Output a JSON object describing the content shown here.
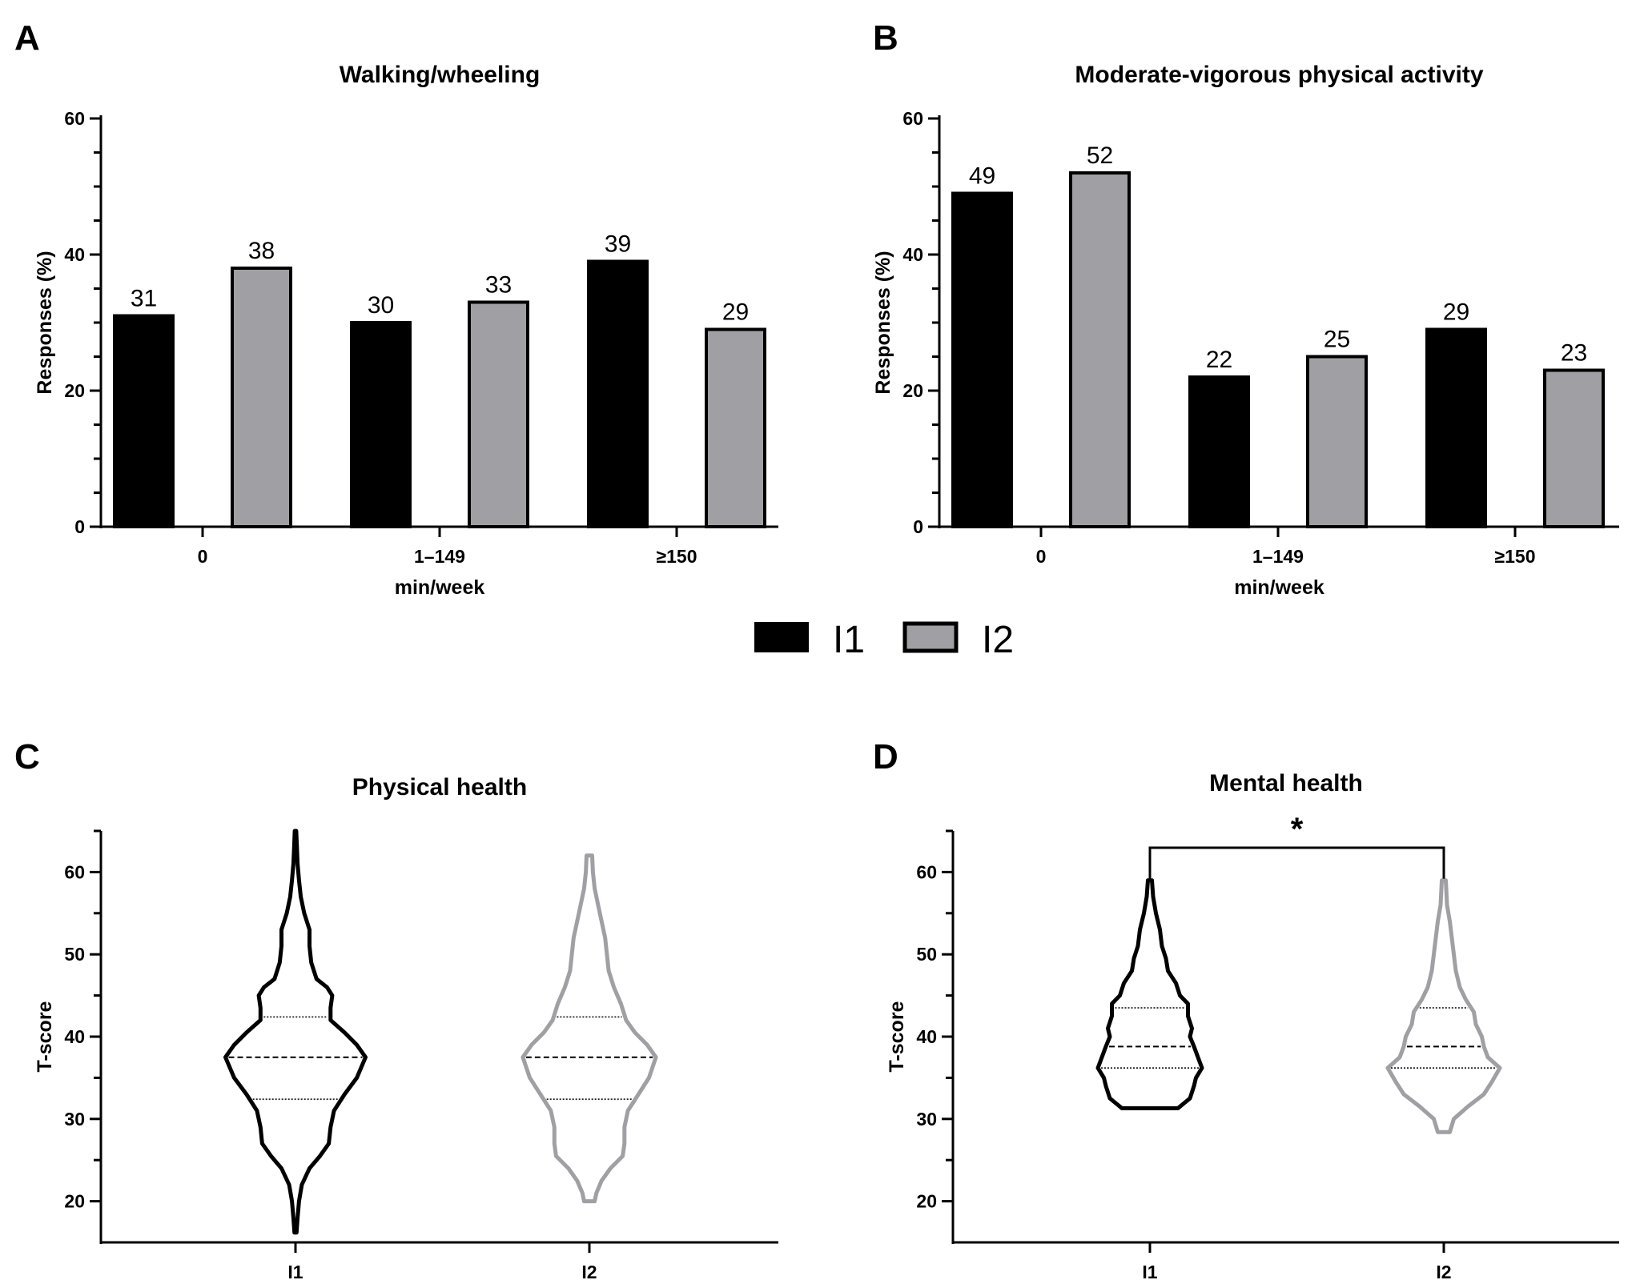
{
  "legend": {
    "entries": [
      {
        "label": "I1",
        "color": "#000000"
      },
      {
        "label": "I2",
        "color": "#a0a0a4"
      }
    ]
  },
  "chart_data": [
    {
      "panel": "A",
      "type": "bar",
      "title": "Walking/wheeling",
      "xlabel": "min/week",
      "ylabel": "Responses (%)",
      "ylim": [
        0,
        60
      ],
      "yticks": [
        0,
        20,
        40,
        60
      ],
      "categories": [
        "0",
        "1–149",
        "≥150"
      ],
      "series": [
        {
          "name": "I1",
          "values": [
            31,
            30,
            39
          ]
        },
        {
          "name": "I2",
          "values": [
            38,
            33,
            29
          ]
        }
      ]
    },
    {
      "panel": "B",
      "type": "bar",
      "title": "Moderate-vigorous physical activity",
      "xlabel": "min/week",
      "ylabel": "Responses (%)",
      "ylim": [
        0,
        60
      ],
      "yticks": [
        0,
        20,
        40,
        60
      ],
      "categories": [
        "0",
        "1–149",
        "≥150"
      ],
      "series": [
        {
          "name": "I1",
          "values": [
            49,
            22,
            29
          ]
        },
        {
          "name": "I2",
          "values": [
            52,
            25,
            23
          ]
        }
      ]
    },
    {
      "panel": "C",
      "type": "violin",
      "title": "Physical health",
      "xlabel": "",
      "ylabel": "T-score",
      "ylim": [
        15,
        65
      ],
      "yticks": [
        20,
        30,
        40,
        50,
        60
      ],
      "categories": [
        "I1",
        "I2"
      ],
      "groups": [
        {
          "name": "I1",
          "min": 16.2,
          "max": 65,
          "q1": 32.4,
          "median": 37.5,
          "q3": 42.4,
          "profile": [
            [
              16.2,
              3
            ],
            [
              18,
              6
            ],
            [
              20,
              10
            ],
            [
              22,
              18
            ],
            [
              24,
              40
            ],
            [
              25.5,
              70
            ],
            [
              27,
              95
            ],
            [
              29,
              100
            ],
            [
              31,
              110
            ],
            [
              33,
              140
            ],
            [
              35,
              175
            ],
            [
              37.5,
              200
            ],
            [
              39,
              175
            ],
            [
              40.5,
              140
            ],
            [
              42,
              100
            ],
            [
              43.5,
              100
            ],
            [
              45,
              105
            ],
            [
              46,
              90
            ],
            [
              47,
              60
            ],
            [
              49,
              45
            ],
            [
              51,
              40
            ],
            [
              53,
              40
            ],
            [
              55,
              25
            ],
            [
              57,
              15
            ],
            [
              59,
              10
            ],
            [
              61,
              6
            ],
            [
              63,
              4
            ],
            [
              65,
              2
            ]
          ]
        },
        {
          "name": "I2",
          "min": 20,
          "max": 62,
          "q1": 32.4,
          "median": 37.5,
          "q3": 42.4,
          "profile": [
            [
              20,
              15
            ],
            [
              21,
              20
            ],
            [
              22.5,
              35
            ],
            [
              24,
              60
            ],
            [
              25.5,
              95
            ],
            [
              27,
              100
            ],
            [
              29,
              100
            ],
            [
              31,
              110
            ],
            [
              33,
              140
            ],
            [
              35,
              170
            ],
            [
              37.5,
              190
            ],
            [
              39,
              165
            ],
            [
              40.5,
              130
            ],
            [
              42,
              105
            ],
            [
              44,
              90
            ],
            [
              46,
              70
            ],
            [
              48,
              55
            ],
            [
              50,
              50
            ],
            [
              52,
              45
            ],
            [
              54,
              35
            ],
            [
              56,
              25
            ],
            [
              58,
              15
            ],
            [
              60,
              10
            ],
            [
              62,
              8
            ]
          ]
        }
      ]
    },
    {
      "panel": "D",
      "type": "violin",
      "title": "Mental health",
      "xlabel": "",
      "ylabel": "T-score",
      "ylim": [
        15,
        65
      ],
      "yticks": [
        20,
        30,
        40,
        50,
        60
      ],
      "categories": [
        "I1",
        "I2"
      ],
      "annotation": {
        "text": "*",
        "between": [
          "I1",
          "I2"
        ]
      },
      "groups": [
        {
          "name": "I1",
          "min": 31.3,
          "max": 59,
          "q1": 36.2,
          "median": 38.8,
          "q3": 43.5,
          "profile": [
            [
              31.3,
              70
            ],
            [
              32.5,
              100
            ],
            [
              34,
              110
            ],
            [
              35,
              115
            ],
            [
              36.2,
              130
            ],
            [
              37.5,
              120
            ],
            [
              38.8,
              110
            ],
            [
              40,
              100
            ],
            [
              41,
              105
            ],
            [
              42.5,
              95
            ],
            [
              44,
              95
            ],
            [
              45,
              75
            ],
            [
              46.5,
              65
            ],
            [
              48,
              45
            ],
            [
              49.5,
              40
            ],
            [
              51,
              30
            ],
            [
              53,
              25
            ],
            [
              55,
              15
            ],
            [
              57,
              8
            ],
            [
              59,
              5
            ]
          ]
        },
        {
          "name": "I2",
          "min": 28.4,
          "max": 59,
          "q1": 36.2,
          "median": 38.8,
          "q3": 43.5,
          "profile": [
            [
              28.4,
              15
            ],
            [
              30,
              25
            ],
            [
              31.5,
              60
            ],
            [
              33,
              100
            ],
            [
              34.5,
              120
            ],
            [
              36.2,
              140
            ],
            [
              37.5,
              110
            ],
            [
              38.8,
              100
            ],
            [
              40,
              95
            ],
            [
              41.5,
              80
            ],
            [
              43,
              75
            ],
            [
              44.5,
              55
            ],
            [
              46,
              40
            ],
            [
              48,
              30
            ],
            [
              50,
              25
            ],
            [
              52,
              20
            ],
            [
              54,
              15
            ],
            [
              56,
              8
            ],
            [
              59,
              5
            ]
          ]
        }
      ]
    }
  ]
}
